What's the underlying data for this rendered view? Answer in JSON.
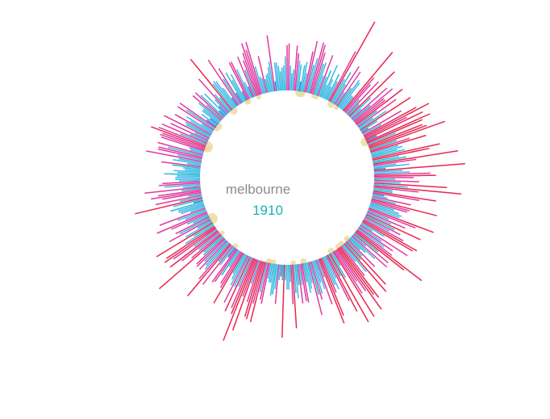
{
  "chart_data": {
    "type": "radial-bar",
    "city": "melbourne",
    "year": "1910",
    "colors": {
      "cool": "#3fb8e8",
      "cool_dark": "#3a7fd6",
      "teal": "#1fbfcf",
      "warm": "#e03aa0",
      "hot": "#e8264f",
      "rain": "#ecdca0",
      "city_text": "#8c8c8c",
      "year_text": "#16b3b8"
    },
    "series": [
      {
        "values": [
          51,
          52,
          40,
          36,
          38,
          51,
          47,
          43,
          41,
          32,
          41,
          43,
          37,
          49,
          55,
          42,
          46,
          55,
          54,
          50,
          44,
          45,
          38,
          50,
          38,
          42,
          34,
          46,
          38,
          34,
          42,
          38,
          57,
          76,
          41,
          46,
          39,
          51,
          35,
          49,
          39,
          45,
          44,
          36,
          36,
          68,
          51,
          47,
          37,
          51,
          35,
          61,
          42,
          34,
          52,
          39,
          54,
          47,
          47,
          58,
          40,
          52,
          36,
          44,
          59,
          37,
          31,
          51,
          38,
          59,
          66,
          52,
          61,
          33,
          64,
          59,
          43,
          58,
          60,
          70,
          42,
          49,
          58,
          42,
          44,
          41,
          45,
          64,
          58,
          41,
          45,
          73,
          50,
          39,
          46,
          33,
          76,
          42,
          46,
          57,
          60,
          48,
          38,
          51,
          41,
          66,
          45,
          74,
          51,
          37,
          37,
          61,
          52,
          33,
          35,
          48,
          40,
          63,
          48,
          47,
          40,
          43,
          45,
          44,
          64,
          54,
          39,
          49,
          41,
          59,
          44,
          48,
          42,
          51,
          60,
          58,
          41,
          34,
          57,
          41,
          49,
          44,
          50,
          71,
          60,
          43,
          51,
          36,
          52,
          44,
          38,
          35,
          47,
          38,
          58,
          39,
          61,
          46,
          38,
          47,
          61,
          58,
          67,
          54,
          47,
          54,
          68,
          35,
          42,
          69,
          40,
          61,
          54,
          40,
          46,
          43,
          47,
          60,
          64,
          37,
          52,
          43,
          39,
          45,
          48,
          45,
          56,
          38,
          41,
          43,
          37,
          48,
          47,
          38,
          48,
          38,
          45,
          42,
          61,
          48,
          36,
          40,
          40,
          35,
          66,
          35,
          33,
          35,
          48,
          40,
          43,
          44,
          37,
          37,
          35,
          49,
          47,
          43,
          60,
          50,
          59,
          58,
          50,
          40,
          67,
          48,
          74,
          59,
          56,
          44,
          59,
          45,
          55,
          45,
          42,
          39,
          58,
          49,
          47,
          37,
          43,
          48,
          49,
          33,
          39,
          53,
          38,
          63,
          52,
          46,
          44,
          48,
          43,
          48,
          47,
          41,
          40,
          71,
          47,
          41,
          52,
          59,
          42,
          55,
          60,
          58,
          45,
          39,
          62,
          43,
          35,
          52,
          45,
          47,
          36,
          39,
          48,
          56,
          39,
          43,
          53,
          35,
          40,
          41,
          41,
          45,
          32,
          43,
          64,
          39,
          52,
          34,
          48,
          54,
          50,
          37,
          57,
          36,
          46,
          49,
          47,
          38,
          40,
          40,
          39,
          46,
          39,
          41,
          35,
          36,
          42,
          48,
          34,
          42,
          39,
          57,
          40,
          51,
          51,
          46,
          52,
          34,
          35,
          51,
          52,
          51,
          58,
          54,
          42,
          53,
          37,
          49,
          35,
          54,
          41,
          42,
          49,
          40,
          43,
          34,
          50,
          45,
          50,
          33,
          37,
          32,
          38,
          38,
          42,
          47,
          38,
          47,
          44,
          31,
          43,
          33,
          37,
          51,
          39,
          36,
          62,
          44,
          45,
          44,
          39,
          32,
          56,
          43,
          49,
          33,
          45,
          40,
          43,
          32,
          49,
          49,
          44,
          36,
          33,
          50,
          42,
          47,
          51,
          56,
          52,
          56,
          42,
          36,
          35,
          47,
          34,
          36,
          37,
          40,
          43,
          57,
          32,
          42,
          42,
          40,
          37,
          39,
          40,
          45
        ]
      }
    ],
    "rain": {
      "values": [
        0,
        0,
        0,
        0,
        0,
        0,
        0,
        0,
        0,
        0,
        0,
        0,
        3.6,
        3.4,
        3.4,
        0,
        0,
        0,
        0,
        0,
        0,
        0,
        0,
        0,
        0,
        0,
        2.0,
        0,
        0,
        2.0,
        0,
        0,
        0,
        0,
        0,
        0,
        0,
        0,
        0,
        0,
        0,
        0,
        0,
        0,
        0,
        3.1,
        0,
        0,
        0,
        0,
        0,
        2.1,
        0,
        0,
        0,
        0,
        0,
        0,
        0,
        0,
        0,
        0,
        0,
        0,
        0,
        0,
        0,
        0,
        0,
        0,
        0,
        0,
        0,
        0,
        0,
        0,
        0,
        0,
        0,
        0,
        0,
        0,
        0,
        0,
        0,
        0,
        0,
        0,
        0,
        0,
        0,
        0,
        0,
        0,
        0,
        3.7,
        0,
        0,
        0,
        0,
        0,
        0,
        0,
        0,
        0,
        0,
        0,
        0,
        0,
        0,
        0,
        0,
        0,
        0,
        0,
        0,
        0,
        0,
        0,
        0,
        0,
        0,
        0,
        0,
        0,
        0,
        0,
        0,
        0,
        0,
        0,
        0,
        0,
        0,
        0,
        0,
        0,
        0,
        0,
        0,
        0,
        0,
        0,
        0,
        0,
        0,
        0,
        0,
        0,
        0,
        0,
        0,
        0,
        0,
        0,
        0,
        0,
        0,
        0,
        0,
        0,
        0,
        0,
        0,
        0,
        0,
        0,
        0,
        0,
        0,
        0,
        0,
        0,
        0,
        0,
        0,
        0,
        0,
        0,
        0,
        0,
        0,
        0,
        0,
        0,
        0,
        0,
        0,
        0,
        0,
        0,
        0,
        0,
        0,
        0,
        0,
        2.3,
        2.3,
        0,
        0,
        0,
        0,
        0,
        0,
        2.5,
        0,
        0,
        0,
        2.3,
        0,
        0,
        0,
        0,
        0,
        0,
        0,
        2.9,
        0,
        0,
        0,
        0,
        0,
        0,
        0,
        0,
        0,
        0,
        0,
        0,
        0,
        0,
        0,
        0,
        0,
        0,
        0,
        0,
        0,
        0,
        0,
        0,
        0,
        0,
        0,
        0,
        2.9,
        0,
        0,
        0,
        0,
        0,
        0,
        0,
        0,
        0,
        2.3,
        0,
        0,
        0,
        0,
        0,
        0,
        0,
        0,
        0,
        0,
        0,
        0,
        0,
        0,
        0,
        0,
        0,
        0,
        2.3,
        0,
        0,
        2.3,
        0,
        2.3,
        0,
        0,
        0,
        0,
        0,
        0,
        0,
        0,
        0,
        0,
        0,
        0,
        0,
        0,
        0,
        0,
        0,
        0,
        0,
        0,
        0,
        0,
        0,
        0,
        0,
        0,
        0,
        0,
        0,
        0,
        0,
        0,
        0,
        0,
        0,
        2.3,
        0,
        0,
        0,
        0,
        0,
        0,
        0,
        0,
        0,
        0,
        0,
        0,
        0,
        0,
        0,
        0,
        0,
        2.3,
        0,
        0,
        0,
        0,
        0,
        0,
        0,
        0,
        0,
        0,
        0,
        0,
        0,
        0,
        0,
        0,
        4.9,
        0,
        0,
        0,
        0,
        0,
        0,
        0,
        0,
        0,
        0,
        0,
        0,
        0,
        0,
        0,
        0,
        0,
        0,
        0,
        0,
        0,
        0,
        0,
        0,
        0,
        0,
        0,
        0,
        0,
        0,
        0,
        0,
        0,
        0,
        0,
        0,
        0,
        0,
        0,
        0,
        0,
        0,
        0,
        0,
        0,
        0,
        0,
        0,
        0,
        0,
        0,
        0,
        0,
        0,
        0,
        0,
        0,
        0,
        0,
        0,
        0,
        0,
        0,
        0,
        0,
        0,
        0,
        0,
        0,
        0,
        2.8,
        4.9,
        0,
        0,
        0,
        0,
        0,
        0,
        0,
        0,
        0,
        0,
        0,
        0,
        0,
        0,
        0,
        0,
        0,
        0,
        0,
        2.3,
        0,
        0,
        3.1,
        0,
        0,
        0,
        0,
        0,
        0,
        0,
        0,
        0,
        0,
        0,
        0,
        0,
        0,
        0,
        0,
        0,
        0,
        0,
        0,
        3.4,
        0,
        0,
        0,
        0,
        0,
        0,
        0,
        0,
        0,
        0,
        0,
        0,
        0,
        0,
        0,
        2.6,
        2.3,
        0,
        0,
        0,
        0,
        0,
        0,
        0,
        0,
        0,
        0,
        2.3,
        0,
        0,
        0,
        0,
        0,
        0,
        0,
        0,
        0,
        0,
        0,
        0,
        0,
        0,
        0,
        0,
        0,
        0,
        0,
        0,
        0,
        0,
        0,
        0,
        0,
        0,
        0
      ]
    }
  }
}
